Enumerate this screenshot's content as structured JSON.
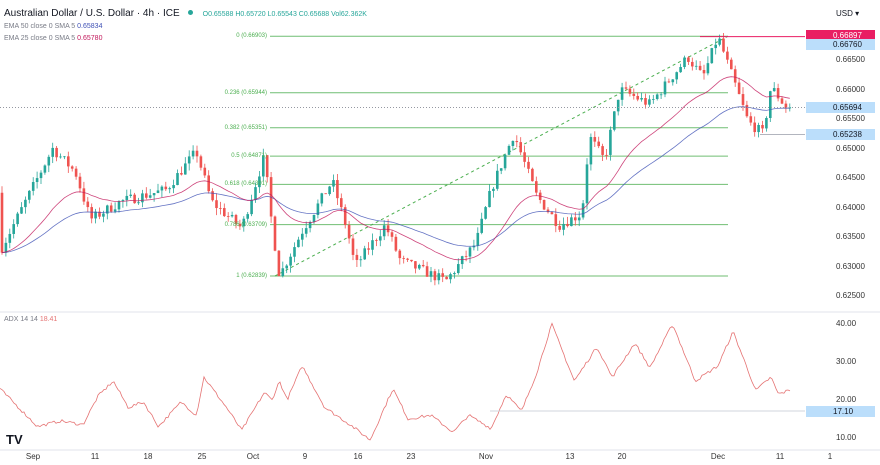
{
  "header": {
    "symbol": "Australian Dollar / U.S. Dollar · 4h · ICE",
    "open": "O0.65588",
    "high": "H0.65720",
    "low": "L0.65543",
    "close": "C0.65688",
    "volume": "Vol62.362K",
    "ema1_label": "EMA 50 close 0 SMA 5",
    "ema1_value": "0.65834",
    "ema2_label": "EMA 25 close 0 SMA 5",
    "ema2_value": "0.65780",
    "currency": "USD ▾"
  },
  "colors": {
    "up": "#26a69a",
    "down": "#ef5350",
    "ema50": "#3f51b5",
    "ema25": "#c2185b",
    "fib": "#4caf50",
    "adx": "#e57373",
    "last_high": "#e91e63",
    "price_tag": "#bbdefb"
  },
  "price_axis": {
    "ticks": [
      "0.66500",
      "0.66000",
      "0.65500",
      "0.65000",
      "0.64500",
      "0.64000",
      "0.63500",
      "0.63000",
      "0.62500"
    ],
    "tags": [
      {
        "value": "0.66897",
        "kind": "high"
      },
      {
        "value": "0.66760",
        "kind": "info"
      },
      {
        "value": "0.65694",
        "kind": "info"
      },
      {
        "value": "0.65238",
        "kind": "info"
      }
    ]
  },
  "fib_levels": [
    {
      "label": "0 (0.66903)",
      "price": 0.66903
    },
    {
      "label": "0.236 (0.65944)",
      "price": 0.65944
    },
    {
      "label": "0.382 (0.65351)",
      "price": 0.65351
    },
    {
      "label": "0.5 (0.64871)",
      "price": 0.64871
    },
    {
      "label": "0.618 (0.64391)",
      "price": 0.64391
    },
    {
      "label": "0.786 (0.63709)",
      "price": 0.63709
    },
    {
      "label": "1 (0.62839)",
      "price": 0.62839
    }
  ],
  "adx": {
    "label": "ADX 14 14",
    "value": "18.41",
    "ticks": [
      "40.00",
      "30.00",
      "20.00",
      "10.00"
    ],
    "tag": "17.10"
  },
  "time_axis": [
    "Sep",
    "11",
    "18",
    "25",
    "Oct",
    "9",
    "16",
    "23",
    "Nov",
    "13",
    "20",
    "Dec",
    "11",
    "1"
  ],
  "chart_data": {
    "type": "candlestick",
    "title": "Australian Dollar / U.S. Dollar · 4h · ICE",
    "ylim": [
      0.6235,
      0.6705
    ],
    "close_path": [
      [
        "Sep 1",
        0.6425
      ],
      [
        "Sep 4",
        0.65
      ],
      [
        "Sep 7",
        0.646
      ],
      [
        "Sep 9",
        0.638
      ],
      [
        "Sep 13",
        0.641
      ],
      [
        "Sep 19",
        0.643
      ],
      [
        "Sep 23",
        0.6495
      ],
      [
        "Sep 25",
        0.641
      ],
      [
        "Sep 29",
        0.6365
      ],
      [
        "Oct 2",
        0.6487
      ],
      [
        "Oct 3",
        0.637
      ],
      [
        "Oct 4",
        0.6284
      ],
      [
        "Oct 7",
        0.636
      ],
      [
        "Oct 11",
        0.6445
      ],
      [
        "Oct 13",
        0.636
      ],
      [
        "Oct 14",
        0.63
      ],
      [
        "Oct 18",
        0.637
      ],
      [
        "Oct 20",
        0.631
      ],
      [
        "Oct 26",
        0.6275
      ],
      [
        "Oct 30",
        0.634
      ],
      [
        "Nov 1",
        0.643
      ],
      [
        "Nov 4",
        0.6525
      ],
      [
        "Nov 7",
        0.642
      ],
      [
        "Nov 10",
        0.637
      ],
      [
        "Nov 13",
        0.639
      ],
      [
        "Nov 14",
        0.652
      ],
      [
        "Nov 16",
        0.648
      ],
      [
        "Nov 18",
        0.66
      ],
      [
        "Nov 22",
        0.6575
      ],
      [
        "Nov 27",
        0.6655
      ],
      [
        "Nov 29",
        0.662
      ],
      [
        "Dec 1",
        0.669
      ],
      [
        "Dec 5",
        0.6545
      ],
      [
        "Dec 7",
        0.6525
      ],
      [
        "Dec 8",
        0.6605
      ],
      [
        "Dec 10",
        0.657
      ],
      [
        "Dec 12",
        0.6569
      ]
    ],
    "adx_path": [
      [
        "Sep 1",
        15
      ],
      [
        "Sep 2",
        13
      ],
      [
        "Sep 5",
        14.5
      ],
      [
        "Sep 8",
        13.5
      ],
      [
        "Sep 10",
        21
      ],
      [
        "Sep 12",
        25
      ],
      [
        "Sep 14",
        18
      ],
      [
        "Sep 16",
        19.5
      ],
      [
        "Sep 18",
        13
      ],
      [
        "Sep 21",
        19.5
      ],
      [
        "Sep 23",
        16
      ],
      [
        "Sep 24",
        26
      ],
      [
        "Sep 27",
        18
      ],
      [
        "Sep 29",
        12
      ],
      [
        "Oct 2",
        22
      ],
      [
        "Oct 3",
        20
      ],
      [
        "Oct 4",
        25
      ],
      [
        "Oct 5",
        20
      ],
      [
        "Oct 7",
        29
      ],
      [
        "Oct 10",
        18
      ],
      [
        "Oct 13",
        14
      ],
      [
        "Oct 16",
        9.5
      ],
      [
        "Oct 19",
        23
      ],
      [
        "Oct 21",
        15
      ],
      [
        "Oct 24",
        16
      ],
      [
        "Oct 27",
        11.5
      ],
      [
        "Oct 29",
        16
      ],
      [
        "Nov 1",
        12.5
      ],
      [
        "Nov 3",
        21.5
      ],
      [
        "Nov 5",
        17
      ],
      [
        "Nov 7",
        27
      ],
      [
        "Nov 9",
        40
      ],
      [
        "Nov 12",
        25
      ],
      [
        "Nov 15",
        34
      ],
      [
        "Nov 17",
        26
      ],
      [
        "Nov 20",
        35
      ],
      [
        "Nov 22",
        28.5
      ],
      [
        "Nov 25",
        40
      ],
      [
        "Nov 28",
        25
      ],
      [
        "Dec 1",
        29
      ],
      [
        "Dec 3",
        38
      ],
      [
        "Dec 6",
        22.5
      ],
      [
        "Dec 8",
        26
      ],
      [
        "Dec 9",
        21.5
      ],
      [
        "Dec 11",
        23
      ],
      [
        "Dec 13",
        17
      ],
      [
        "Dec 14",
        18.4
      ]
    ]
  }
}
